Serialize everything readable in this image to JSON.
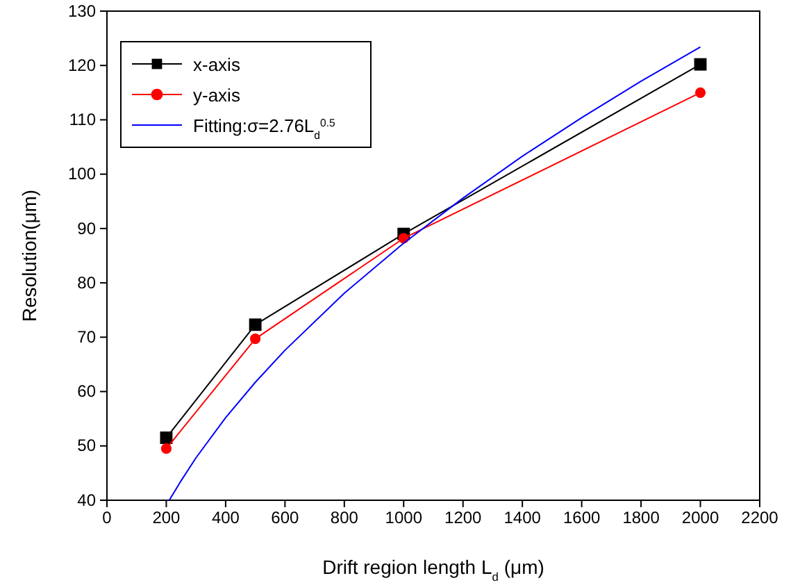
{
  "chart_data": {
    "type": "line",
    "xlabel": "Drift region length L$_{d}$ (μm)",
    "ylabel": "Resolution(μm)",
    "xlim": [
      0,
      2200
    ],
    "xticks": [
      0,
      200,
      400,
      600,
      800,
      1000,
      1200,
      1400,
      1600,
      1800,
      2000,
      2200
    ],
    "ylim": [
      40,
      130
    ],
    "yticks": [
      40,
      50,
      60,
      70,
      80,
      90,
      100,
      110,
      120,
      130
    ],
    "grid": false,
    "legend": "top left",
    "series": [
      {
        "name": "x-axis",
        "color": "#000000",
        "marker": "square",
        "x": [
          200,
          500,
          1000,
          2000
        ],
        "values": [
          51.5,
          72.3,
          89,
          120.2
        ]
      },
      {
        "name": "y-axis",
        "color": "#ff0000",
        "marker": "circle",
        "x": [
          200,
          500,
          1000,
          2000
        ],
        "values": [
          49.5,
          69.7,
          88.2,
          115
        ]
      },
      {
        "name": "Fitting:σ=2.76L$_{d}$$^{0.5}$",
        "color": "#0000ff",
        "marker": "none",
        "x": [
          210,
          250,
          300,
          400,
          500,
          600,
          800,
          1000,
          1200,
          1400,
          1600,
          1800,
          2000
        ],
        "values": [
          40,
          43.6,
          47.8,
          55.2,
          61.7,
          67.6,
          78.1,
          87.3,
          95.6,
          103.3,
          110.4,
          117.1,
          123.4
        ]
      }
    ]
  }
}
